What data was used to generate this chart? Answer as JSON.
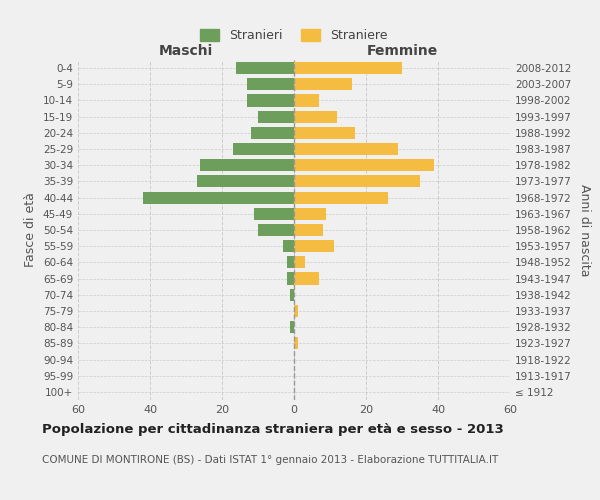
{
  "age_groups": [
    "100+",
    "95-99",
    "90-94",
    "85-89",
    "80-84",
    "75-79",
    "70-74",
    "65-69",
    "60-64",
    "55-59",
    "50-54",
    "45-49",
    "40-44",
    "35-39",
    "30-34",
    "25-29",
    "20-24",
    "15-19",
    "10-14",
    "5-9",
    "0-4"
  ],
  "birth_years": [
    "≤ 1912",
    "1913-1917",
    "1918-1922",
    "1923-1927",
    "1928-1932",
    "1933-1937",
    "1938-1942",
    "1943-1947",
    "1948-1952",
    "1953-1957",
    "1958-1962",
    "1963-1967",
    "1968-1972",
    "1973-1977",
    "1978-1982",
    "1983-1987",
    "1988-1992",
    "1993-1997",
    "1998-2002",
    "2003-2007",
    "2008-2012"
  ],
  "males": [
    0,
    0,
    0,
    0,
    1,
    0,
    1,
    2,
    2,
    3,
    10,
    11,
    42,
    27,
    26,
    17,
    12,
    10,
    13,
    13,
    16
  ],
  "females": [
    0,
    0,
    0,
    1,
    0,
    1,
    0,
    7,
    3,
    11,
    8,
    9,
    26,
    35,
    39,
    29,
    17,
    12,
    7,
    16,
    30
  ],
  "male_color": "#6d9e5b",
  "female_color": "#f5bc42",
  "background_color": "#f0f0f0",
  "grid_color": "#cccccc",
  "center_line_color": "#999999",
  "title": "Popolazione per cittadinanza straniera per età e sesso - 2013",
  "subtitle": "COMUNE DI MONTIRONE (BS) - Dati ISTAT 1° gennaio 2013 - Elaborazione TUTTITALIA.IT",
  "xlabel_left": "Maschi",
  "xlabel_right": "Femmine",
  "ylabel_left": "Fasce di età",
  "ylabel_right": "Anni di nascita",
  "legend_male": "Stranieri",
  "legend_female": "Straniere",
  "xlim": 60
}
